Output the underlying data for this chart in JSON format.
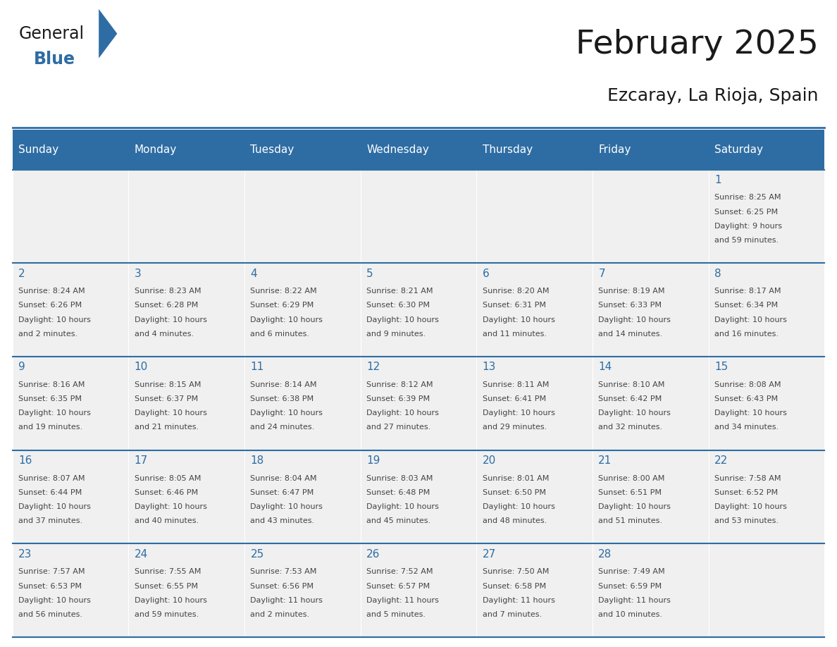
{
  "title": "February 2025",
  "subtitle": "Ezcaray, La Rioja, Spain",
  "header_bg_color": "#2E6DA4",
  "header_text_color": "#FFFFFF",
  "cell_bg_color": "#F0F0F0",
  "grid_line_color": "#2E6DA4",
  "day_number_color": "#2E6DA4",
  "text_color": "#444444",
  "days_of_week": [
    "Sunday",
    "Monday",
    "Tuesday",
    "Wednesday",
    "Thursday",
    "Friday",
    "Saturday"
  ],
  "weeks": [
    [
      {
        "day": null,
        "info": ""
      },
      {
        "day": null,
        "info": ""
      },
      {
        "day": null,
        "info": ""
      },
      {
        "day": null,
        "info": ""
      },
      {
        "day": null,
        "info": ""
      },
      {
        "day": null,
        "info": ""
      },
      {
        "day": 1,
        "info": "Sunrise: 8:25 AM\nSunset: 6:25 PM\nDaylight: 9 hours\nand 59 minutes."
      }
    ],
    [
      {
        "day": 2,
        "info": "Sunrise: 8:24 AM\nSunset: 6:26 PM\nDaylight: 10 hours\nand 2 minutes."
      },
      {
        "day": 3,
        "info": "Sunrise: 8:23 AM\nSunset: 6:28 PM\nDaylight: 10 hours\nand 4 minutes."
      },
      {
        "day": 4,
        "info": "Sunrise: 8:22 AM\nSunset: 6:29 PM\nDaylight: 10 hours\nand 6 minutes."
      },
      {
        "day": 5,
        "info": "Sunrise: 8:21 AM\nSunset: 6:30 PM\nDaylight: 10 hours\nand 9 minutes."
      },
      {
        "day": 6,
        "info": "Sunrise: 8:20 AM\nSunset: 6:31 PM\nDaylight: 10 hours\nand 11 minutes."
      },
      {
        "day": 7,
        "info": "Sunrise: 8:19 AM\nSunset: 6:33 PM\nDaylight: 10 hours\nand 14 minutes."
      },
      {
        "day": 8,
        "info": "Sunrise: 8:17 AM\nSunset: 6:34 PM\nDaylight: 10 hours\nand 16 minutes."
      }
    ],
    [
      {
        "day": 9,
        "info": "Sunrise: 8:16 AM\nSunset: 6:35 PM\nDaylight: 10 hours\nand 19 minutes."
      },
      {
        "day": 10,
        "info": "Sunrise: 8:15 AM\nSunset: 6:37 PM\nDaylight: 10 hours\nand 21 minutes."
      },
      {
        "day": 11,
        "info": "Sunrise: 8:14 AM\nSunset: 6:38 PM\nDaylight: 10 hours\nand 24 minutes."
      },
      {
        "day": 12,
        "info": "Sunrise: 8:12 AM\nSunset: 6:39 PM\nDaylight: 10 hours\nand 27 minutes."
      },
      {
        "day": 13,
        "info": "Sunrise: 8:11 AM\nSunset: 6:41 PM\nDaylight: 10 hours\nand 29 minutes."
      },
      {
        "day": 14,
        "info": "Sunrise: 8:10 AM\nSunset: 6:42 PM\nDaylight: 10 hours\nand 32 minutes."
      },
      {
        "day": 15,
        "info": "Sunrise: 8:08 AM\nSunset: 6:43 PM\nDaylight: 10 hours\nand 34 minutes."
      }
    ],
    [
      {
        "day": 16,
        "info": "Sunrise: 8:07 AM\nSunset: 6:44 PM\nDaylight: 10 hours\nand 37 minutes."
      },
      {
        "day": 17,
        "info": "Sunrise: 8:05 AM\nSunset: 6:46 PM\nDaylight: 10 hours\nand 40 minutes."
      },
      {
        "day": 18,
        "info": "Sunrise: 8:04 AM\nSunset: 6:47 PM\nDaylight: 10 hours\nand 43 minutes."
      },
      {
        "day": 19,
        "info": "Sunrise: 8:03 AM\nSunset: 6:48 PM\nDaylight: 10 hours\nand 45 minutes."
      },
      {
        "day": 20,
        "info": "Sunrise: 8:01 AM\nSunset: 6:50 PM\nDaylight: 10 hours\nand 48 minutes."
      },
      {
        "day": 21,
        "info": "Sunrise: 8:00 AM\nSunset: 6:51 PM\nDaylight: 10 hours\nand 51 minutes."
      },
      {
        "day": 22,
        "info": "Sunrise: 7:58 AM\nSunset: 6:52 PM\nDaylight: 10 hours\nand 53 minutes."
      }
    ],
    [
      {
        "day": 23,
        "info": "Sunrise: 7:57 AM\nSunset: 6:53 PM\nDaylight: 10 hours\nand 56 minutes."
      },
      {
        "day": 24,
        "info": "Sunrise: 7:55 AM\nSunset: 6:55 PM\nDaylight: 10 hours\nand 59 minutes."
      },
      {
        "day": 25,
        "info": "Sunrise: 7:53 AM\nSunset: 6:56 PM\nDaylight: 11 hours\nand 2 minutes."
      },
      {
        "day": 26,
        "info": "Sunrise: 7:52 AM\nSunset: 6:57 PM\nDaylight: 11 hours\nand 5 minutes."
      },
      {
        "day": 27,
        "info": "Sunrise: 7:50 AM\nSunset: 6:58 PM\nDaylight: 11 hours\nand 7 minutes."
      },
      {
        "day": 28,
        "info": "Sunrise: 7:49 AM\nSunset: 6:59 PM\nDaylight: 11 hours\nand 10 minutes."
      },
      {
        "day": null,
        "info": ""
      }
    ]
  ],
  "logo_general_color": "#1A1A1A",
  "logo_blue_color": "#2E6DA4",
  "fig_width": 11.88,
  "fig_height": 9.18,
  "dpi": 100
}
